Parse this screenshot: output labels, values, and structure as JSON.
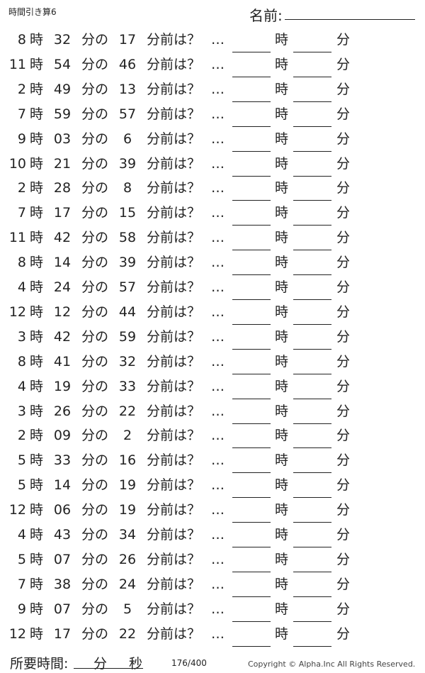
{
  "header": {
    "title": "時間引き算6",
    "name_label": "名前:"
  },
  "labels": {
    "hour": "時",
    "min_of": "分の",
    "before": "分前は？",
    "dots": "…",
    "ans_hour": "時",
    "ans_min": "分"
  },
  "problems": [
    {
      "h": "8",
      "m": "32",
      "d": "17"
    },
    {
      "h": "11",
      "m": "54",
      "d": "46"
    },
    {
      "h": "2",
      "m": "49",
      "d": "13"
    },
    {
      "h": "7",
      "m": "59",
      "d": "57"
    },
    {
      "h": "9",
      "m": "03",
      "d": "6"
    },
    {
      "h": "10",
      "m": "21",
      "d": "39"
    },
    {
      "h": "2",
      "m": "28",
      "d": "8"
    },
    {
      "h": "7",
      "m": "17",
      "d": "15"
    },
    {
      "h": "11",
      "m": "42",
      "d": "58"
    },
    {
      "h": "8",
      "m": "14",
      "d": "39"
    },
    {
      "h": "4",
      "m": "24",
      "d": "57"
    },
    {
      "h": "12",
      "m": "12",
      "d": "44"
    },
    {
      "h": "3",
      "m": "42",
      "d": "59"
    },
    {
      "h": "8",
      "m": "41",
      "d": "32"
    },
    {
      "h": "4",
      "m": "19",
      "d": "33"
    },
    {
      "h": "3",
      "m": "26",
      "d": "22"
    },
    {
      "h": "2",
      "m": "09",
      "d": "2"
    },
    {
      "h": "5",
      "m": "33",
      "d": "16"
    },
    {
      "h": "5",
      "m": "14",
      "d": "19"
    },
    {
      "h": "12",
      "m": "06",
      "d": "19"
    },
    {
      "h": "4",
      "m": "43",
      "d": "34"
    },
    {
      "h": "5",
      "m": "07",
      "d": "26"
    },
    {
      "h": "7",
      "m": "38",
      "d": "24"
    },
    {
      "h": "9",
      "m": "07",
      "d": "5"
    },
    {
      "h": "12",
      "m": "17",
      "d": "22"
    }
  ],
  "footer": {
    "time_label": "所要時間:",
    "min": "分",
    "sec": "秒",
    "page": "176/400",
    "copyright": "Copyright ©  Alpha.Inc All Rights Reserved."
  }
}
